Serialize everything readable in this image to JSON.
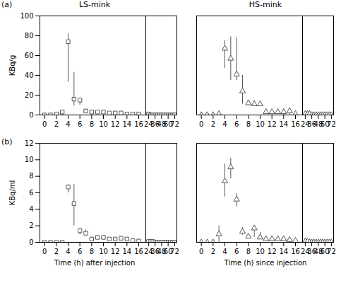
{
  "chart_data": [
    {
      "type": "scatter",
      "title": "LS-mink",
      "ylabel": "KBq/g",
      "annotations": [
        {
          "text": "(a)"
        }
      ],
      "xlim": [
        [
          -0.8,
          17.2
        ],
        [
          19,
          76
        ]
      ],
      "xticks": [
        [
          0,
          2,
          4,
          6,
          8,
          10,
          12,
          14,
          16
        ],
        [
          24,
          36,
          48,
          60,
          72
        ]
      ],
      "ylim": [
        0,
        100
      ],
      "yticks": [
        0,
        20,
        40,
        60,
        80,
        100
      ],
      "series": [
        {
          "color": "#444444",
          "marker": "square",
          "x": [
            0,
            1,
            2,
            3,
            4,
            5,
            6,
            7,
            8,
            9,
            10,
            11,
            12,
            13,
            14,
            15,
            16,
            24,
            28,
            32,
            36,
            40,
            44,
            48,
            52,
            56,
            60,
            64,
            68,
            72
          ],
          "values": [
            0,
            0,
            1,
            3,
            74,
            16,
            15,
            4,
            3,
            3,
            3,
            2,
            2,
            2,
            1,
            1,
            1,
            1,
            0,
            0,
            0,
            0,
            0,
            0,
            0,
            0,
            0,
            0,
            0,
            0
          ],
          "q1": [
            0,
            0,
            0,
            0,
            33,
            9,
            10,
            3,
            2,
            2,
            2,
            1,
            1,
            1,
            0,
            0,
            0,
            0,
            0,
            0,
            0,
            0,
            0,
            0,
            0,
            0,
            0,
            0,
            0,
            0
          ],
          "q3": [
            0,
            0,
            2,
            4,
            82,
            43,
            16,
            6,
            4,
            4,
            4,
            3,
            3,
            3,
            2,
            2,
            2,
            2,
            1,
            1,
            0,
            0,
            0,
            0,
            0,
            0,
            0,
            0,
            0,
            0
          ]
        }
      ]
    },
    {
      "type": "scatter",
      "title": "HS-mink",
      "tick_labels": "x",
      "xlim": [
        [
          -0.8,
          17.2
        ],
        [
          19,
          76
        ]
      ],
      "xticks": [
        [
          0,
          2,
          4,
          6,
          8,
          10,
          12,
          14,
          16
        ],
        [
          24,
          36,
          48,
          60,
          72
        ]
      ],
      "ylim": [
        0,
        100
      ],
      "series": [
        {
          "color": "#444444",
          "marker": "triangle",
          "x": [
            0,
            1,
            2,
            3,
            4,
            5,
            6,
            7,
            8,
            9,
            10,
            11,
            12,
            13,
            14,
            15,
            16,
            24,
            28,
            32,
            36,
            40,
            44,
            48,
            52,
            56,
            60,
            64,
            68,
            72
          ],
          "values": [
            0,
            0,
            0,
            1,
            67,
            57,
            41,
            24,
            12,
            11,
            11,
            3,
            3,
            3,
            3,
            4,
            1,
            1,
            1,
            1,
            0,
            0,
            0,
            0,
            0,
            0,
            0,
            0,
            0,
            0
          ],
          "q1": [
            0,
            0,
            0,
            0,
            47,
            35,
            35,
            11,
            10,
            10,
            9,
            2,
            2,
            1,
            0,
            0,
            0,
            0,
            0,
            0,
            0,
            0,
            0,
            0,
            0,
            0,
            0,
            0,
            0,
            0
          ],
          "q3": [
            0,
            0,
            0,
            2,
            75,
            79,
            78,
            40,
            14,
            14,
            14,
            6,
            5,
            5,
            6,
            5,
            3,
            2,
            2,
            2,
            1,
            1,
            1,
            0,
            0,
            0,
            0,
            0,
            0,
            0
          ]
        }
      ]
    },
    {
      "type": "scatter",
      "ylabel": "KBq/ml",
      "xlabel": "Time (h) after injection",
      "annotations": [
        {
          "text": "(b)"
        }
      ],
      "xlim": [
        [
          -0.8,
          17.2
        ],
        [
          19,
          76
        ]
      ],
      "xticks": [
        [
          0,
          2,
          4,
          6,
          8,
          10,
          12,
          14,
          16
        ],
        [
          24,
          36,
          48,
          60,
          72
        ]
      ],
      "ylim": [
        0,
        12
      ],
      "yticks": [
        0,
        2,
        4,
        6,
        8,
        10,
        12
      ],
      "series": [
        {
          "color": "#444444",
          "marker": "square",
          "x": [
            0,
            1,
            2,
            3,
            4,
            5,
            6,
            7,
            8,
            9,
            10,
            11,
            12,
            13,
            14,
            15,
            16,
            24,
            28,
            32,
            36,
            40,
            44,
            48,
            52,
            56,
            60,
            64,
            68,
            72
          ],
          "values": [
            0,
            0,
            0,
            0,
            6.7,
            4.7,
            1.4,
            1.1,
            0.4,
            0.6,
            0.6,
            0.4,
            0.4,
            0.5,
            0.4,
            0.2,
            0.15,
            0.1,
            0.1,
            0.1,
            0.0,
            0.0,
            0.0,
            0.0,
            0.0,
            0.0,
            0.0,
            0.0,
            0.0,
            0.0
          ],
          "q1": [
            0,
            0,
            0,
            0,
            6.0,
            2.0,
            0.9,
            0.8,
            0.3,
            0.4,
            0.4,
            0.3,
            0.3,
            0.4,
            0.3,
            0.1,
            0.1,
            0.0,
            0.0,
            0.0,
            0.0,
            0.0,
            0.0,
            0.0,
            0.0,
            0.0,
            0.0,
            0.0,
            0.0,
            0.0
          ],
          "q3": [
            0,
            0,
            0,
            0,
            7.0,
            7.0,
            1.7,
            1.5,
            0.6,
            0.8,
            0.8,
            0.6,
            0.6,
            0.7,
            0.6,
            0.4,
            0.3,
            0.2,
            0.1,
            0.1,
            0.0,
            0.0,
            0.0,
            0.0,
            0.0,
            0.0,
            0.0,
            0.0,
            0.0,
            0.0
          ]
        }
      ]
    },
    {
      "type": "scatter",
      "xlabel": "Time (h) since injection",
      "tick_labels": "x",
      "xlim": [
        [
          -0.8,
          17.2
        ],
        [
          19,
          76
        ]
      ],
      "xticks": [
        [
          0,
          2,
          4,
          6,
          8,
          10,
          12,
          14,
          16
        ],
        [
          24,
          36,
          48,
          60,
          72
        ]
      ],
      "ylim": [
        0,
        12
      ],
      "series": [
        {
          "color": "#444444",
          "marker": "triangle",
          "x": [
            0,
            1,
            2,
            3,
            4,
            5,
            6,
            7,
            8,
            9,
            10,
            11,
            12,
            13,
            14,
            15,
            16,
            24,
            28,
            32,
            36,
            40,
            44,
            48,
            52,
            56,
            60,
            64,
            68,
            72
          ],
          "values": [
            0,
            0,
            0,
            1,
            7.4,
            9.1,
            5.2,
            1.3,
            0.7,
            1.7,
            0.6,
            0.4,
            0.4,
            0.4,
            0.4,
            0.3,
            0.2,
            0.1,
            0.1,
            0.0,
            0.0,
            0.0,
            0.0,
            0.0,
            0.0,
            0.0,
            0.0,
            0.0,
            0.0,
            0.0
          ],
          "q1": [
            0,
            0,
            0,
            0,
            5.5,
            7.7,
            4.3,
            0.9,
            0.6,
            0.6,
            0.4,
            0.3,
            0.3,
            0.3,
            0.3,
            0.2,
            0.1,
            0.1,
            0.0,
            0.0,
            0.0,
            0.0,
            0.0,
            0.0,
            0.0,
            0.0,
            0.0,
            0.0,
            0.0,
            0.0
          ],
          "q3": [
            0,
            0,
            0,
            2,
            9.5,
            10.2,
            5.9,
            1.8,
            0.9,
            2.0,
            1.2,
            0.7,
            0.6,
            0.6,
            0.7,
            0.5,
            0.4,
            0.2,
            0.2,
            0.1,
            0.0,
            0.0,
            0.0,
            0.0,
            0.0,
            0.0,
            0.0,
            0.0,
            0.0,
            0.0
          ]
        }
      ]
    }
  ]
}
